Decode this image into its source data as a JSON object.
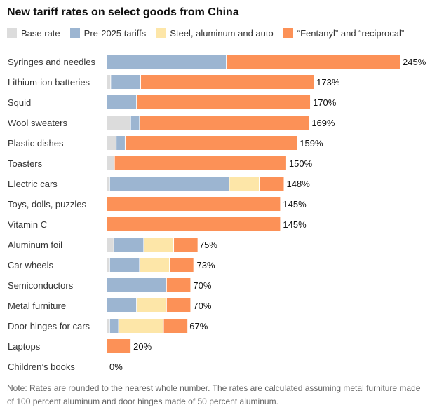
{
  "title": "New tariff rates on select goods from China",
  "note": "Note: Rates are rounded to the nearest whole number. The rates are calculated assuming metal furniture made of 100 percent aluminum and door hinges made of 50 percent aluminum.",
  "chart_data": {
    "type": "bar",
    "orientation": "horizontal",
    "stacked": true,
    "grid": false,
    "legend_position": "top",
    "value_suffix": "%",
    "categories": [
      "Syringes and needles",
      "Lithium-ion batteries",
      "Squid",
      "Wool sweaters",
      "Plastic dishes",
      "Toasters",
      "Electric cars",
      "Toys, dolls, puzzles",
      "Vitamin C",
      "Aluminum foil",
      "Car wheels",
      "Semiconductors",
      "Metal furniture",
      "Door hinges for cars",
      "Laptops",
      "Children’s books"
    ],
    "totals": [
      245,
      173,
      170,
      169,
      159,
      150,
      148,
      145,
      145,
      75,
      73,
      70,
      70,
      67,
      20,
      0
    ],
    "series": [
      {
        "name": "Base rate",
        "color": "#dcdcdc",
        "values": [
          0,
          3.4,
          0,
          20,
          8,
          6.5,
          2.5,
          0,
          0,
          6,
          2.5,
          0,
          0,
          2.5,
          0,
          0
        ]
      },
      {
        "name": "Pre-2025 tariffs",
        "color": "#9cb5d1",
        "values": [
          100,
          25,
          25,
          7.5,
          7.5,
          0,
          100,
          0,
          0,
          25,
          25,
          50,
          25,
          7.5,
          0,
          0
        ]
      },
      {
        "name": "Steel, aluminum and auto",
        "color": "#fde6a8",
        "values": [
          0,
          0,
          0,
          0,
          0,
          0,
          25,
          0,
          0,
          25,
          25,
          0,
          25,
          37.5,
          0,
          0
        ]
      },
      {
        "name": "“Fentanyl” and “reciprocal”",
        "color": "#fc9157",
        "values": [
          145,
          145,
          145,
          141.5,
          143.5,
          143.5,
          20.5,
          145,
          145,
          20,
          20,
          20,
          20,
          20,
          20,
          0
        ]
      }
    ],
    "value_labels": [
      "245%",
      "173%",
      "170%",
      "169%",
      "159%",
      "150%",
      "148%",
      "145%",
      "145%",
      "75%",
      "73%",
      "70%",
      "70%",
      "67%",
      "20%",
      "0%"
    ]
  }
}
